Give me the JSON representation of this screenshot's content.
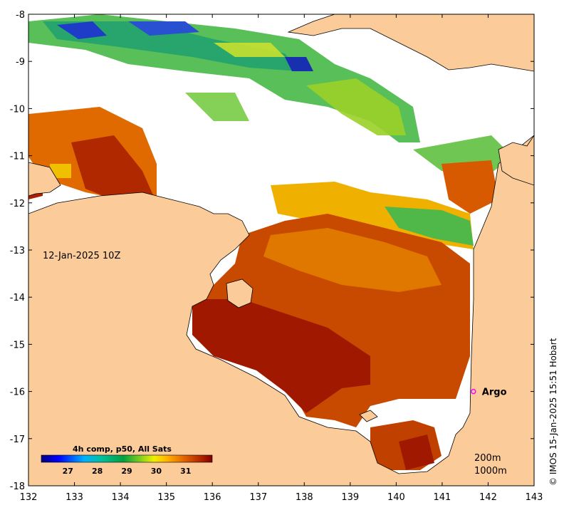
{
  "map": {
    "date_label": "12-Jan-2025 10Z",
    "credit": "© IMOS 15-Jan-2025 15:51 Hobart",
    "lon_ticks": [
      "132",
      "133",
      "134",
      "135",
      "136",
      "137",
      "138",
      "139",
      "140",
      "141",
      "142",
      "143"
    ],
    "lat_ticks": [
      "-8",
      "-9",
      "-10",
      "-11",
      "-12",
      "-13",
      "-14",
      "-15",
      "-16",
      "-17",
      "-18"
    ],
    "lon_range": [
      132,
      143
    ],
    "lat_range": [
      -18,
      -8
    ],
    "marker": {
      "label": "Argo",
      "lon": 141.68,
      "lat": -16.0,
      "color": "#ff00ff"
    },
    "depth_labels": [
      "200m",
      "1000m"
    ],
    "land_color": "#fccb9a",
    "colorbar": {
      "title": "4h comp, p50, All Sats",
      "tick_labels": [
        "27",
        "28",
        "29",
        "30",
        "31"
      ],
      "range": [
        26.1,
        31.9
      ],
      "tick_values": [
        27,
        28,
        29,
        30,
        31
      ]
    }
  }
}
